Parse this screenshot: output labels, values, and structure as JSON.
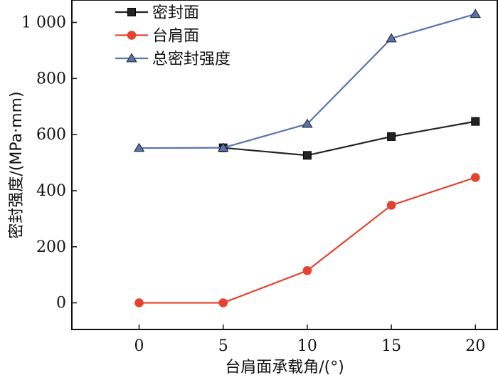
{
  "chart_data": {
    "type": "line",
    "title": "",
    "xlabel": "台肩面承载角/(°)",
    "ylabel": "密封强度/(MPa·mm)",
    "x": [
      0,
      5,
      10,
      15,
      20
    ],
    "x_tick_labels": [
      "0",
      "5",
      "10",
      "15",
      "20"
    ],
    "y_tick_values": [
      0,
      200,
      400,
      600,
      800,
      1000
    ],
    "y_tick_labels": [
      "0",
      "200",
      "400",
      "600",
      "800",
      "1 000"
    ],
    "xlim": [
      -4,
      21.3
    ],
    "ylim": [
      -95,
      1080
    ],
    "grid": false,
    "legend_position": "top-left",
    "series": [
      {
        "name": "密封面",
        "color": "#222222",
        "marker": "square",
        "x": [
          5,
          10,
          15,
          20
        ],
        "values": [
          553,
          526,
          593,
          647
        ]
      },
      {
        "name": "台肩面",
        "color": "#e5432f",
        "marker": "circle",
        "x": [
          0,
          5,
          10,
          15,
          20
        ],
        "values": [
          0,
          0,
          115,
          348,
          447
        ]
      },
      {
        "name": "总密封强度",
        "color": "#5874b0",
        "marker": "triangle",
        "x": [
          0,
          5,
          10,
          15,
          20
        ],
        "values": [
          552,
          553,
          638,
          943,
          1030
        ]
      }
    ]
  }
}
